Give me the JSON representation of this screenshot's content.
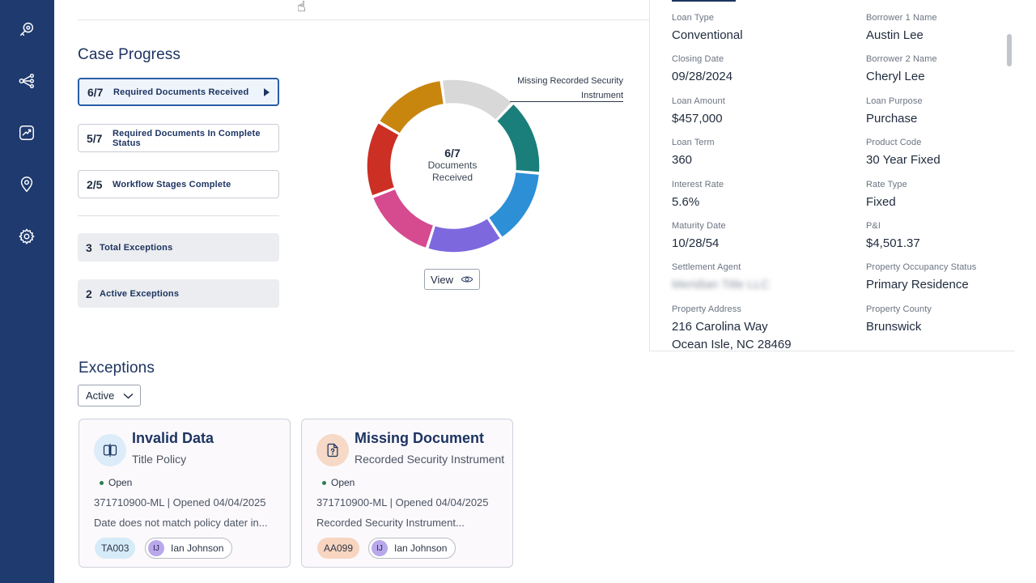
{
  "sidebar": {
    "icons": [
      "search-key-icon",
      "workflow-icon",
      "analytics-icon",
      "location-icon",
      "gear-icon"
    ],
    "color": "#1e3a6e"
  },
  "case_progress": {
    "title": "Case Progress",
    "items": [
      {
        "count": "6/7",
        "label": "Required Documents Received"
      },
      {
        "count": "5/7",
        "label": "Required Documents In Complete Status"
      },
      {
        "count": "2/5",
        "label": "Workflow Stages Complete"
      }
    ],
    "exceptions": [
      {
        "count": "3",
        "label": "Total Exceptions"
      },
      {
        "count": "2",
        "label": "Active Exceptions"
      }
    ]
  },
  "donut": {
    "center_value": "6/7",
    "center_line1": "Documents",
    "center_line2": "Received",
    "callout_line1": "Missing Recorded Security",
    "callout_line2": "Instrument",
    "segment_colors": [
      "#d8d8d8",
      "#1a7e7a",
      "#2d8fd6",
      "#7e68de",
      "#d64a8f",
      "#cc2f24",
      "#c8860f"
    ],
    "view_label": "View"
  },
  "loan_details": {
    "fields": [
      {
        "label": "Loan Type",
        "value": "Conventional"
      },
      {
        "label": "Borrower 1 Name",
        "value": "Austin Lee"
      },
      {
        "label": "Closing Date",
        "value": "09/28/2024"
      },
      {
        "label": "Borrower 2 Name",
        "value": "Cheryl Lee"
      },
      {
        "label": "Loan Amount",
        "value": "$457,000"
      },
      {
        "label": "Loan Purpose",
        "value": "Purchase"
      },
      {
        "label": "Loan Term",
        "value": "360"
      },
      {
        "label": "Product Code",
        "value": "30 Year Fixed"
      },
      {
        "label": "Interest Rate",
        "value": "5.6%"
      },
      {
        "label": "Rate Type",
        "value": "Fixed"
      },
      {
        "label": "Maturity Date",
        "value": "10/28/54"
      },
      {
        "label": "P&I",
        "value": "$4,501.37"
      },
      {
        "label": "Settlement Agent",
        "value": "Meridian Title LLC"
      },
      {
        "label": "Property Occupancy Status",
        "value": "Primary Residence"
      },
      {
        "label": "Property Address",
        "value": "216 Carolina Way",
        "value2": "Ocean Isle, NC 28469"
      },
      {
        "label": "Property County",
        "value": "Brunswick"
      }
    ]
  },
  "exceptions": {
    "title": "Exceptions",
    "filter_value": "Active",
    "cards": [
      {
        "title": "Invalid Data",
        "subtitle": "Title Policy",
        "status": "Open",
        "id_line": "371710900-ML | Opened 04/04/2025",
        "description": "Date does not match policy dater in...",
        "code": "TA003",
        "assignee_initials": "IJ",
        "assignee": "Ian Johnson",
        "icon": "data-mismatch-icon",
        "icon_bg": "#dcecf9",
        "code_bg": "#d6ebf8"
      },
      {
        "title": "Missing Document",
        "subtitle": "Recorded Security Instrument",
        "status": "Open",
        "id_line": "371710900-ML | Opened 04/04/2025",
        "description": "Recorded Security Instrument...",
        "code": "AA099",
        "assignee_initials": "IJ",
        "assignee": "Ian Johnson",
        "icon": "missing-document-icon",
        "icon_bg": "#f6d9c6",
        "code_bg": "#f8d5c0"
      }
    ]
  }
}
